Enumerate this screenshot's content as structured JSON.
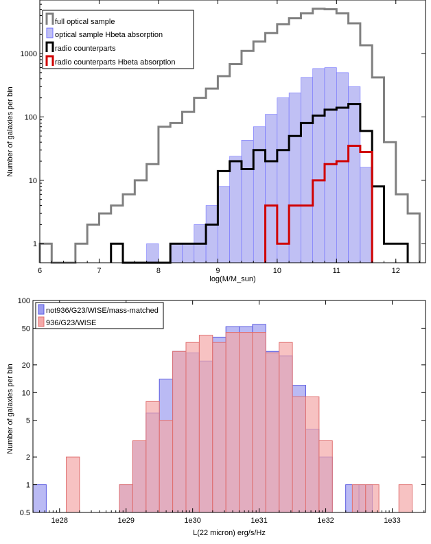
{
  "chart_data": [
    {
      "type": "histogram",
      "xlabel": "log(M/M_sun)",
      "ylabel": "Number of galaxies per bin",
      "xlim": [
        6,
        12.5
      ],
      "ylim": [
        0.5,
        7000
      ],
      "yscale": "log",
      "xticks": [
        "6",
        "7",
        "8",
        "9",
        "10",
        "11",
        "12"
      ],
      "yticks": [
        "1",
        "10",
        "100",
        "1000"
      ],
      "bin_width": 0.2,
      "legend_position": "top-left",
      "series": [
        {
          "name": "full optical sample",
          "color": "#808080",
          "style": "step",
          "bins": [
            [
              6.0,
              1
            ],
            [
              6.4,
              0
            ],
            [
              6.6,
              1
            ],
            [
              6.8,
              2
            ],
            [
              7.0,
              3
            ],
            [
              7.2,
              4
            ],
            [
              7.4,
              6
            ],
            [
              7.6,
              10
            ],
            [
              7.8,
              18
            ],
            [
              8.0,
              70
            ],
            [
              8.2,
              80
            ],
            [
              8.4,
              120
            ],
            [
              8.6,
              200
            ],
            [
              8.8,
              280
            ],
            [
              9.0,
              440
            ],
            [
              9.2,
              680
            ],
            [
              9.4,
              1100
            ],
            [
              9.6,
              1550
            ],
            [
              9.8,
              2100
            ],
            [
              10.0,
              2900
            ],
            [
              10.2,
              3600
            ],
            [
              10.4,
              4300
            ],
            [
              10.6,
              5100
            ],
            [
              10.8,
              5000
            ],
            [
              11.0,
              4300
            ],
            [
              11.2,
              3000
            ],
            [
              11.4,
              1350
            ],
            [
              11.6,
              420
            ],
            [
              11.8,
              40
            ],
            [
              12.0,
              6
            ],
            [
              12.2,
              3
            ]
          ]
        },
        {
          "name": "optical sample Hbeta absorption",
          "color": "#7070ff",
          "fill": "#c0c0f4",
          "style": "filled-step",
          "bins": [
            [
              7.8,
              1
            ],
            [
              8.2,
              1
            ],
            [
              8.4,
              1
            ],
            [
              8.6,
              2
            ],
            [
              8.8,
              4
            ],
            [
              9.0,
              8
            ],
            [
              9.2,
              24
            ],
            [
              9.4,
              43
            ],
            [
              9.6,
              70
            ],
            [
              9.8,
              110
            ],
            [
              10.0,
              200
            ],
            [
              10.2,
              240
            ],
            [
              10.4,
              420
            ],
            [
              10.6,
              580
            ],
            [
              10.8,
              600
            ],
            [
              11.0,
              500
            ],
            [
              11.2,
              300
            ],
            [
              11.4,
              16
            ]
          ]
        },
        {
          "name": "radio counterparts",
          "color": "#000000",
          "style": "step",
          "bins": [
            [
              7.2,
              1
            ],
            [
              7.4,
              0
            ],
            [
              8.2,
              1
            ],
            [
              8.4,
              1
            ],
            [
              8.6,
              1
            ],
            [
              8.8,
              2
            ],
            [
              9.0,
              14
            ],
            [
              9.2,
              20
            ],
            [
              9.4,
              15
            ],
            [
              9.6,
              30
            ],
            [
              9.8,
              20
            ],
            [
              10.0,
              30
            ],
            [
              10.2,
              50
            ],
            [
              10.4,
              80
            ],
            [
              10.6,
              105
            ],
            [
              10.8,
              130
            ],
            [
              11.0,
              140
            ],
            [
              11.2,
              160
            ],
            [
              11.4,
              60
            ],
            [
              11.6,
              8
            ],
            [
              11.8,
              1
            ],
            [
              12.0,
              1
            ]
          ]
        },
        {
          "name": "radio counterparts Hbeta absorption",
          "color": "#d00000",
          "style": "step",
          "bins": [
            [
              9.8,
              4
            ],
            [
              10.0,
              1
            ],
            [
              10.2,
              4
            ],
            [
              10.4,
              4
            ],
            [
              10.6,
              10
            ],
            [
              10.8,
              18
            ],
            [
              11.0,
              20
            ],
            [
              11.2,
              35
            ],
            [
              11.4,
              28
            ],
            [
              11.6,
              0
            ]
          ]
        }
      ]
    },
    {
      "type": "histogram",
      "xlabel": "L(22 micron) erg/s/Hz",
      "ylabel": "Number of galaxies per bin",
      "xscale": "log",
      "yscale": "log",
      "xlim": [
        "1e27.6",
        "1e33.5"
      ],
      "ylim": [
        0.5,
        100
      ],
      "xticks": [
        "1e28",
        "1e29",
        "1e30",
        "1e31",
        "1e32",
        "1e33"
      ],
      "yticks": [
        "0.5",
        "1",
        "2",
        "5",
        "10",
        "20",
        "50",
        "100"
      ],
      "legend_position": "top-left",
      "series": [
        {
          "name": "not936/G23/WISE/mass-matched",
          "color": "#5858e0",
          "fill": "#9c9cf0",
          "style": "filled-step",
          "bins": [
            [
              "1e27.6",
              1
            ],
            [
              "1e27.8",
              0.5
            ],
            [
              "1e28.9",
              1
            ],
            [
              "1e29.1",
              3
            ],
            [
              "1e29.3",
              6
            ],
            [
              "1e29.5",
              14
            ],
            [
              "1e29.7",
              28
            ],
            [
              "1e29.9",
              27
            ],
            [
              "1e30.1",
              22
            ],
            [
              "1e30.3",
              40
            ],
            [
              "1e30.5",
              52
            ],
            [
              "1e30.7",
              52
            ],
            [
              "1e30.9",
              55
            ],
            [
              "1e31.1",
              28
            ],
            [
              "1e31.3",
              25
            ],
            [
              "1e31.5",
              12
            ],
            [
              "1e31.7",
              4
            ],
            [
              "1e31.9",
              2
            ],
            [
              "1e32.1",
              0.5
            ],
            [
              "1e32.3",
              1
            ],
            [
              "1e32.5",
              1
            ],
            [
              "1e32.7",
              0.5
            ]
          ]
        },
        {
          "name": "936/G23/WISE",
          "color": "#e07070",
          "fill": "#f4a8a8",
          "style": "filled-step",
          "bins": [
            [
              "1e28.1",
              2
            ],
            [
              "1e28.3",
              0.5
            ],
            [
              "1e28.9",
              1
            ],
            [
              "1e29.1",
              3
            ],
            [
              "1e29.3",
              8
            ],
            [
              "1e29.5",
              5
            ],
            [
              "1e29.7",
              28
            ],
            [
              "1e29.9",
              35
            ],
            [
              "1e30.1",
              42
            ],
            [
              "1e30.3",
              35
            ],
            [
              "1e30.5",
              45
            ],
            [
              "1e30.7",
              45
            ],
            [
              "1e30.9",
              45
            ],
            [
              "1e31.1",
              27
            ],
            [
              "1e31.3",
              35
            ],
            [
              "1e31.5",
              9
            ],
            [
              "1e31.7",
              9
            ],
            [
              "1e31.9",
              3
            ],
            [
              "1e32.1",
              0.5
            ],
            [
              "1e32.4",
              1
            ],
            [
              "1e32.6",
              1
            ],
            [
              "1e32.8",
              0.5
            ],
            [
              "1e33.1",
              1
            ]
          ]
        }
      ]
    }
  ]
}
